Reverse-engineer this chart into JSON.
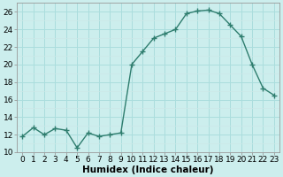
{
  "x": [
    0,
    1,
    2,
    3,
    4,
    5,
    6,
    7,
    8,
    9,
    10,
    11,
    12,
    13,
    14,
    15,
    16,
    17,
    18,
    19,
    20,
    21,
    22,
    23
  ],
  "y": [
    11.8,
    12.8,
    12.0,
    12.7,
    12.5,
    10.5,
    12.2,
    11.8,
    12.0,
    12.2,
    20.0,
    21.5,
    23.0,
    23.5,
    24.0,
    25.8,
    26.1,
    26.2,
    25.8,
    24.5,
    23.2,
    20.0,
    17.3,
    16.5
  ],
  "line_color": "#2e7d6e",
  "marker": "+",
  "marker_size": 4,
  "marker_edge_width": 1.0,
  "bg_color": "#cceeed",
  "grid_major_color": "#aadddd",
  "grid_minor_color": "#cce8e8",
  "xlabel": "Humidex (Indice chaleur)",
  "xlim": [
    -0.5,
    23.5
  ],
  "ylim": [
    10,
    27
  ],
  "yticks": [
    10,
    12,
    14,
    16,
    18,
    20,
    22,
    24,
    26
  ],
  "xticks": [
    0,
    1,
    2,
    3,
    4,
    5,
    6,
    7,
    8,
    9,
    10,
    11,
    12,
    13,
    14,
    15,
    16,
    17,
    18,
    19,
    20,
    21,
    22,
    23
  ],
  "xlabel_fontsize": 7.5,
  "tick_fontsize": 6.5,
  "line_width": 1.0
}
